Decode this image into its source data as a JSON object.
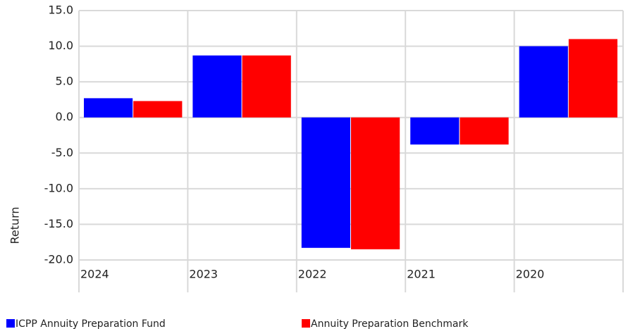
{
  "chart_data": {
    "type": "bar",
    "y_label": "Return",
    "categories": [
      "2024",
      "2023",
      "2022",
      "2021",
      "2020"
    ],
    "series": [
      {
        "name": "ICPP Annuity Preparation Fund",
        "color": "#0000ff",
        "values": [
          2.7,
          8.7,
          -18.3,
          -3.8,
          10.0
        ]
      },
      {
        "name": "Annuity Preparation Benchmark",
        "color": "#ff0000",
        "values": [
          2.3,
          8.7,
          -18.5,
          -3.8,
          11.0
        ]
      }
    ],
    "ylim": [
      -20,
      15
    ],
    "yticks": [
      {
        "value": -20,
        "label": "-20.0"
      },
      {
        "value": -15,
        "label": "-15.0"
      },
      {
        "value": -10,
        "label": "-10.0"
      },
      {
        "value": -5,
        "label": "-5.0"
      },
      {
        "value": 0,
        "label": "0.0"
      },
      {
        "value": 5,
        "label": "5.0"
      },
      {
        "value": 10,
        "label": "10.0"
      },
      {
        "value": 15,
        "label": "15.0"
      }
    ],
    "grid": true
  }
}
